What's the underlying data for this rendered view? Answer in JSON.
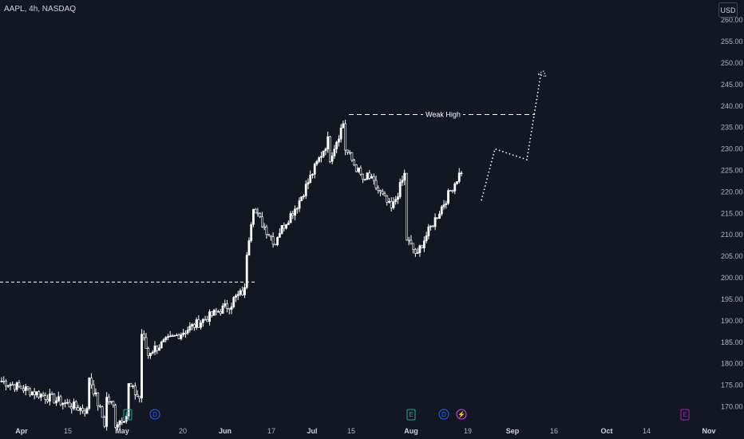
{
  "header": {
    "symbol": "AAPL, 4h, NASDAQ"
  },
  "currency_button": "USD",
  "chart_data": {
    "type": "candlestick",
    "y_ticks": [
      170,
      175,
      180,
      185,
      190,
      195,
      200,
      205,
      210,
      215,
      220,
      225,
      230,
      235,
      240,
      245,
      250,
      255,
      260
    ],
    "y_tick_labels": [
      "170.00",
      "175.00",
      "180.00",
      "185.00",
      "190.00",
      "195.00",
      "200.00",
      "205.00",
      "210.00",
      "215.00",
      "220.00",
      "225.00",
      "230.00",
      "235.00",
      "240.00",
      "245.00",
      "250.00",
      "255.00",
      "260.00"
    ],
    "x_labels": [
      "Apr",
      "15",
      "May",
      "20",
      "Jun",
      "17",
      "Jul",
      "15",
      "Aug",
      "19",
      "Sep",
      "16",
      "Oct",
      "14",
      "Nov"
    ],
    "x_bold": [
      "Apr",
      "May",
      "Jun",
      "Jul",
      "Aug",
      "Sep",
      "Oct",
      "Nov"
    ],
    "y_range": [
      168,
      261
    ],
    "candle_color": "#ffffff",
    "segments": [
      {
        "from": 176,
        "to": 169,
        "steps": 40
      },
      {
        "from": 177,
        "to": 166,
        "steps": 8
      },
      {
        "from": 172,
        "to": 170,
        "steps": 4
      },
      {
        "from": 166,
        "to": 168,
        "steps": 6
      },
      {
        "from": 175,
        "to": 172,
        "steps": 6
      },
      {
        "from": 187,
        "to": 182,
        "steps": 4
      },
      {
        "from": 183,
        "to": 194,
        "steps": 38
      },
      {
        "from": 195,
        "to": 197,
        "steps": 6
      },
      {
        "from": 206,
        "to": 217,
        "steps": 4
      },
      {
        "from": 215,
        "to": 208,
        "steps": 10
      },
      {
        "from": 210,
        "to": 217,
        "steps": 10
      },
      {
        "from": 218,
        "to": 232,
        "steps": 14
      },
      {
        "from": 228,
        "to": 236,
        "steps": 7
      },
      {
        "from": 230,
        "to": 222,
        "steps": 10
      },
      {
        "from": 224,
        "to": 216,
        "steps": 12
      },
      {
        "from": 217,
        "to": 224,
        "steps": 6
      },
      {
        "from": 209,
        "to": 205,
        "steps": 6
      },
      {
        "from": 207,
        "to": 225,
        "steps": 20
      }
    ],
    "weak_high": {
      "label": "Weak High",
      "price": 238
    },
    "level_line": {
      "price": 199
    },
    "projection": [
      [
        218,
        0
      ],
      [
        230,
        0.35
      ],
      [
        227.5,
        0.85
      ],
      [
        248,
        1
      ]
    ],
    "events": [
      {
        "text": "E",
        "color": "#26a69a"
      },
      {
        "text": "D",
        "color": "#2962ff"
      },
      {
        "text": "E",
        "color": "#26a69a"
      },
      {
        "text": "D",
        "color": "#2962ff"
      },
      {
        "text": "⚡",
        "color": "#e040fb"
      },
      {
        "text": "E",
        "color": "#9c27b0"
      }
    ]
  }
}
